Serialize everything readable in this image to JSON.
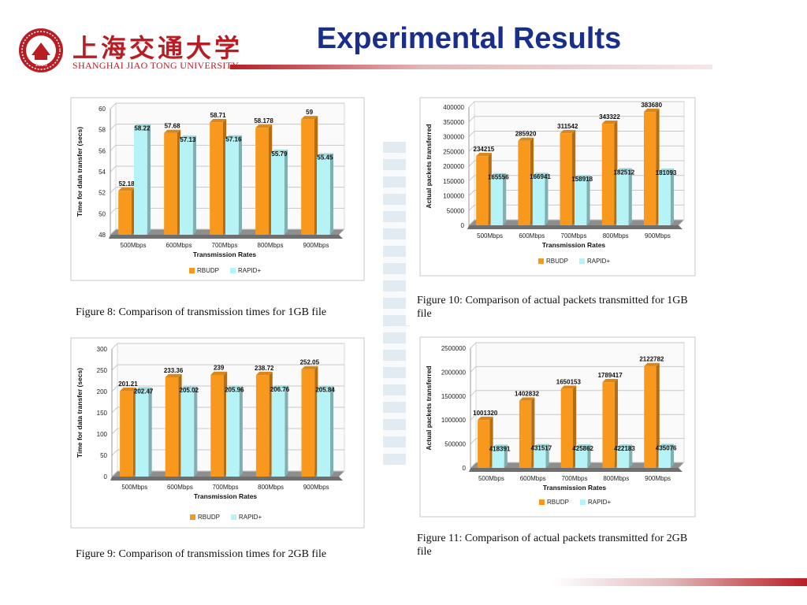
{
  "header": {
    "title": "Experimental Results",
    "university_cn": "上海交通大学",
    "university_en": "SHANGHAI JIAO TONG UNIVERSITY",
    "seal_year": "1896"
  },
  "colors": {
    "brand_red": "#b81d24",
    "title_blue": "#1a2e8c",
    "rbudp": "#f8991d",
    "rapid": "#b5f3f6"
  },
  "chart_data": [
    {
      "type": "bar",
      "caption": "Figure 8: Comparison of transmission times for 1GB file",
      "categories": [
        "500Mbps",
        "600Mbps",
        "700Mbps",
        "800Mbps",
        "900Mbps"
      ],
      "series": [
        {
          "name": "RBUDP",
          "labels": [
            "52.18",
            "57.68",
            "58.71",
            "58.178",
            "59"
          ],
          "values": [
            52.18,
            57.68,
            58.71,
            58.178,
            59
          ]
        },
        {
          "name": "RAPID+",
          "labels": [
            "58.22",
            "57.13",
            "57.16",
            "55.79",
            "55.45"
          ],
          "values": [
            58.22,
            57.13,
            57.16,
            55.79,
            55.45
          ]
        }
      ],
      "xlabel": "Transmission Rates",
      "ylabel": "Time for data transfer (secs)",
      "ylim": [
        48,
        60
      ],
      "yticks": [
        48,
        50,
        52,
        54,
        56,
        58,
        60
      ],
      "grid": true,
      "legend": "bottom"
    },
    {
      "type": "bar",
      "caption": "Figure 10: Comparison of actual packets transmitted for 1GB file",
      "categories": [
        "500Mbps",
        "600Mbps",
        "700Mbps",
        "800Mbps",
        "900Mbps"
      ],
      "series": [
        {
          "name": "RBUDP",
          "labels": [
            "234215",
            "285920",
            "311542",
            "343322",
            "383680"
          ],
          "values": [
            234215,
            285920,
            311542,
            343322,
            383680
          ]
        },
        {
          "name": "RAPID+",
          "labels": [
            "165556",
            "166941",
            "158918",
            "182512",
            "181093"
          ],
          "values": [
            165556,
            166941,
            158918,
            182512,
            181093
          ]
        }
      ],
      "xlabel": "Transmission Rates",
      "ylabel": "Actual packets transferred",
      "ylim": [
        0,
        400000
      ],
      "yticks": [
        0,
        50000,
        100000,
        150000,
        200000,
        250000,
        300000,
        350000,
        400000
      ],
      "grid": true,
      "legend": "bottom"
    },
    {
      "type": "bar",
      "caption": "Figure 9: Comparison of transmission times for 2GB file",
      "categories": [
        "500Mbps",
        "600Mbps",
        "700Mbps",
        "800Mbps",
        "900Mbps"
      ],
      "series": [
        {
          "name": "RBUDP",
          "labels": [
            "201.21",
            "233.36",
            "239",
            "238.72",
            "252.05"
          ],
          "values": [
            201.21,
            233.36,
            239,
            238.72,
            252.05
          ]
        },
        {
          "name": "RAPID+",
          "labels": [
            "202.47",
            "205.02",
            "205.96",
            "206.76",
            "205.84"
          ],
          "values": [
            202.47,
            205.02,
            205.96,
            206.76,
            205.84
          ]
        }
      ],
      "xlabel": "Transmission Rates",
      "ylabel": "Time for data transfer (secs)",
      "ylim": [
        0,
        300
      ],
      "yticks": [
        0,
        50,
        100,
        150,
        200,
        250,
        300
      ],
      "grid": true,
      "legend": "bottom"
    },
    {
      "type": "bar",
      "caption": "Figure 11: Comparison of actual packets transmitted for 2GB file",
      "categories": [
        "500Mbps",
        "600Mbps",
        "700Mbps",
        "800Mbps",
        "900Mbps"
      ],
      "series": [
        {
          "name": "RBUDP",
          "labels": [
            "1001320",
            "1402832",
            "1650153",
            "1789417",
            "2122782"
          ],
          "values": [
            1001320,
            1402832,
            1650153,
            1789417,
            2122782
          ]
        },
        {
          "name": "RAPID+",
          "labels": [
            "418391",
            "431517",
            "425862",
            "422183",
            "435076"
          ],
          "values": [
            418391,
            431517,
            425862,
            422183,
            435076
          ]
        }
      ],
      "xlabel": "Transmission Rates",
      "ylabel": "Actual packets transferred",
      "ylim": [
        0,
        2500000
      ],
      "yticks": [
        0,
        500000,
        1000000,
        1500000,
        2000000,
        2500000
      ],
      "grid": true,
      "legend": "bottom"
    }
  ]
}
